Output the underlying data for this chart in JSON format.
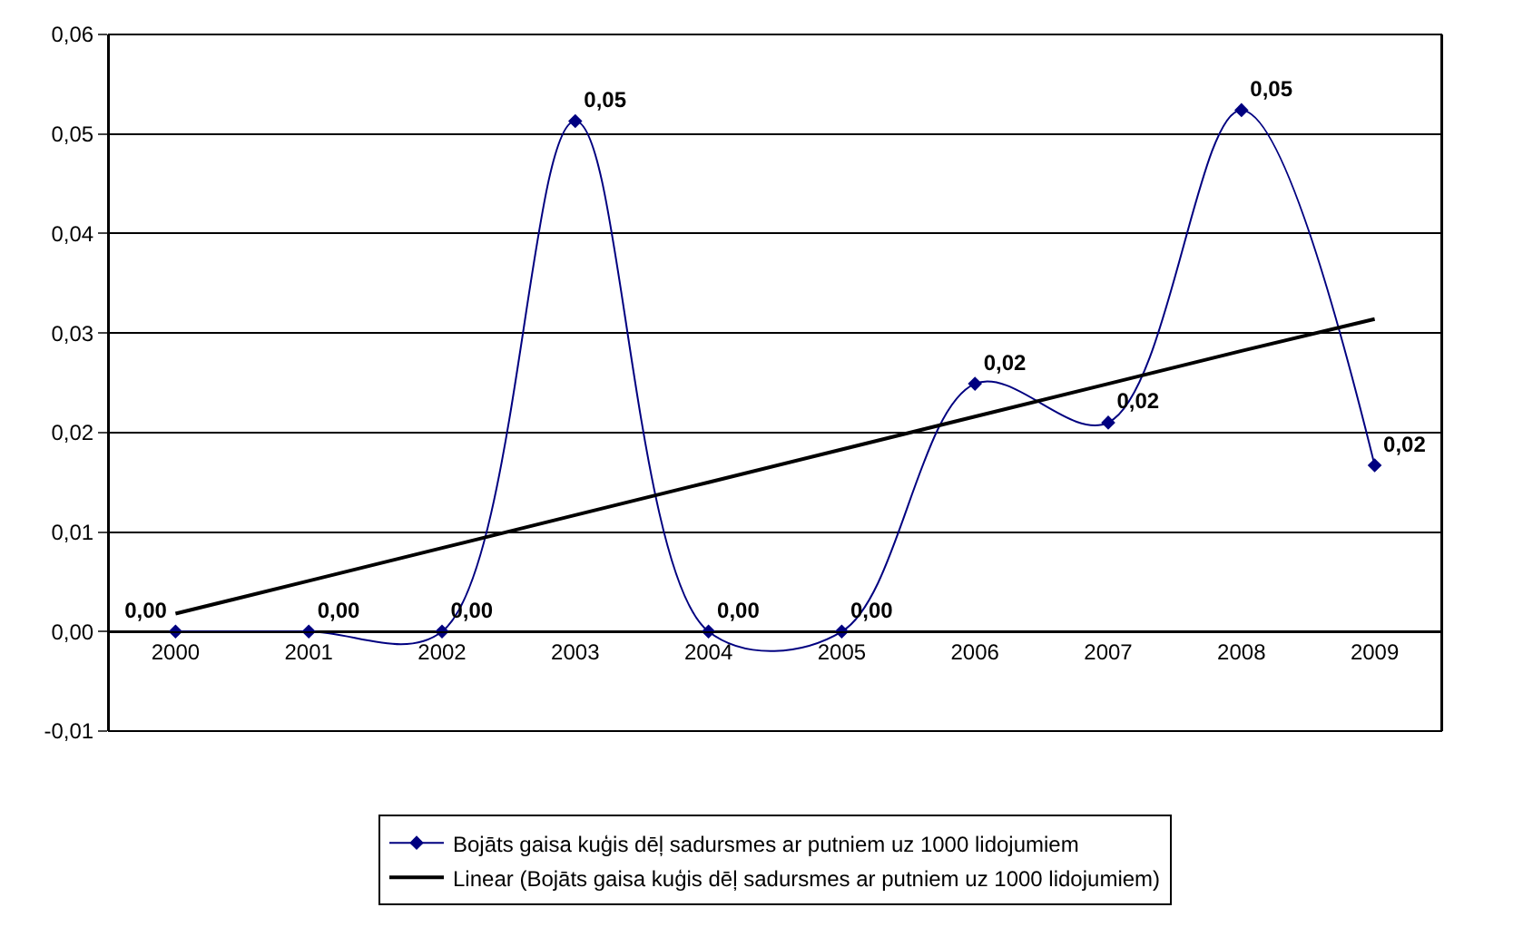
{
  "chart_data": {
    "type": "line",
    "categories": [
      "2000",
      "2001",
      "2002",
      "2003",
      "2004",
      "2005",
      "2006",
      "2007",
      "2008",
      "2009"
    ],
    "series": [
      {
        "name": "Bojāts gaisa kuģis dēļ sadursmes ar putniem uz 1000 lidojumiem",
        "color": "#000080",
        "values": [
          0,
          0,
          0,
          0.0513,
          0,
          0,
          0.0249,
          0.021,
          0.0524,
          0.0167
        ],
        "value_labels": [
          "0,00",
          "0,00",
          "0,00",
          "0,05",
          "0,00",
          "0,00",
          "0,02",
          "0,02",
          "0,05",
          "0,02"
        ],
        "marker": "diamond"
      },
      {
        "name": "Linear (Bojāts gaisa kuģis dēļ sadursmes ar putniem uz 1000 lidojumiem)",
        "color": "#000000",
        "values": [
          0.0018,
          0.0051,
          0.0084,
          0.0117,
          0.015,
          0.0183,
          0.0216,
          0.0249,
          0.0282,
          0.0314
        ],
        "marker": "none"
      }
    ],
    "ylim": [
      -0.01,
      0.06
    ],
    "yticks": [
      {
        "value": -0.01,
        "label": "-0,01"
      },
      {
        "value": 0,
        "label": "0,00"
      },
      {
        "value": 0.01,
        "label": "0,01"
      },
      {
        "value": 0.02,
        "label": "0,02"
      },
      {
        "value": 0.03,
        "label": "0,03"
      },
      {
        "value": 0.04,
        "label": "0,04"
      },
      {
        "value": 0.05,
        "label": "0,05"
      },
      {
        "value": 0.06,
        "label": "0,06"
      }
    ],
    "grid": "y",
    "legend": "bottom"
  }
}
